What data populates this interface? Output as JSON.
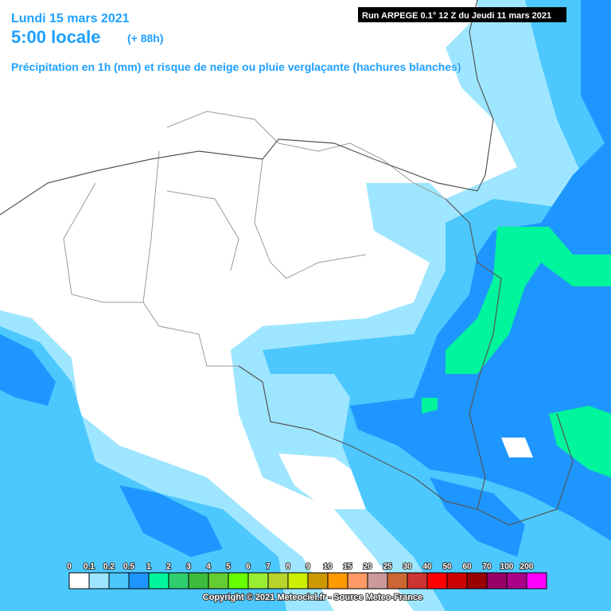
{
  "header": {
    "date": "Lundi 15 mars 2021",
    "time": "5:00 locale",
    "lead": "(+ 88h)",
    "run": "Run ARPEGE 0.1° 12 Z du Jeudi 11 mars 2021",
    "subtitle": "Précipitation en 1h (mm) et risque de neige ou pluie verglaçante (hachures blanches)"
  },
  "legend": {
    "labels": [
      "0",
      "0.1",
      "0.2",
      "0.5",
      "1",
      "2",
      "3",
      "4",
      "5",
      "6",
      "7",
      "8",
      "9",
      "10",
      "15",
      "20",
      "25",
      "30",
      "40",
      "50",
      "60",
      "70",
      "100",
      "200"
    ],
    "colors": [
      "#ffffff",
      "#9ee6ff",
      "#4cc8ff",
      "#1e96ff",
      "#00f59c",
      "#2fcf6e",
      "#3dbb3d",
      "#66cc33",
      "#66ff00",
      "#99ee33",
      "#b8d42c",
      "#ccee00",
      "#cc9900",
      "#ff9900",
      "#ff9966",
      "#cc9999",
      "#cc6633",
      "#cc3333",
      "#ff0000",
      "#cc0000",
      "#990000",
      "#990066",
      "#aa0088",
      "#ff00ff"
    ]
  },
  "footer": {
    "copyright": "Copyright © 2021 Meteociel.fr - Source Meteo-France"
  }
}
